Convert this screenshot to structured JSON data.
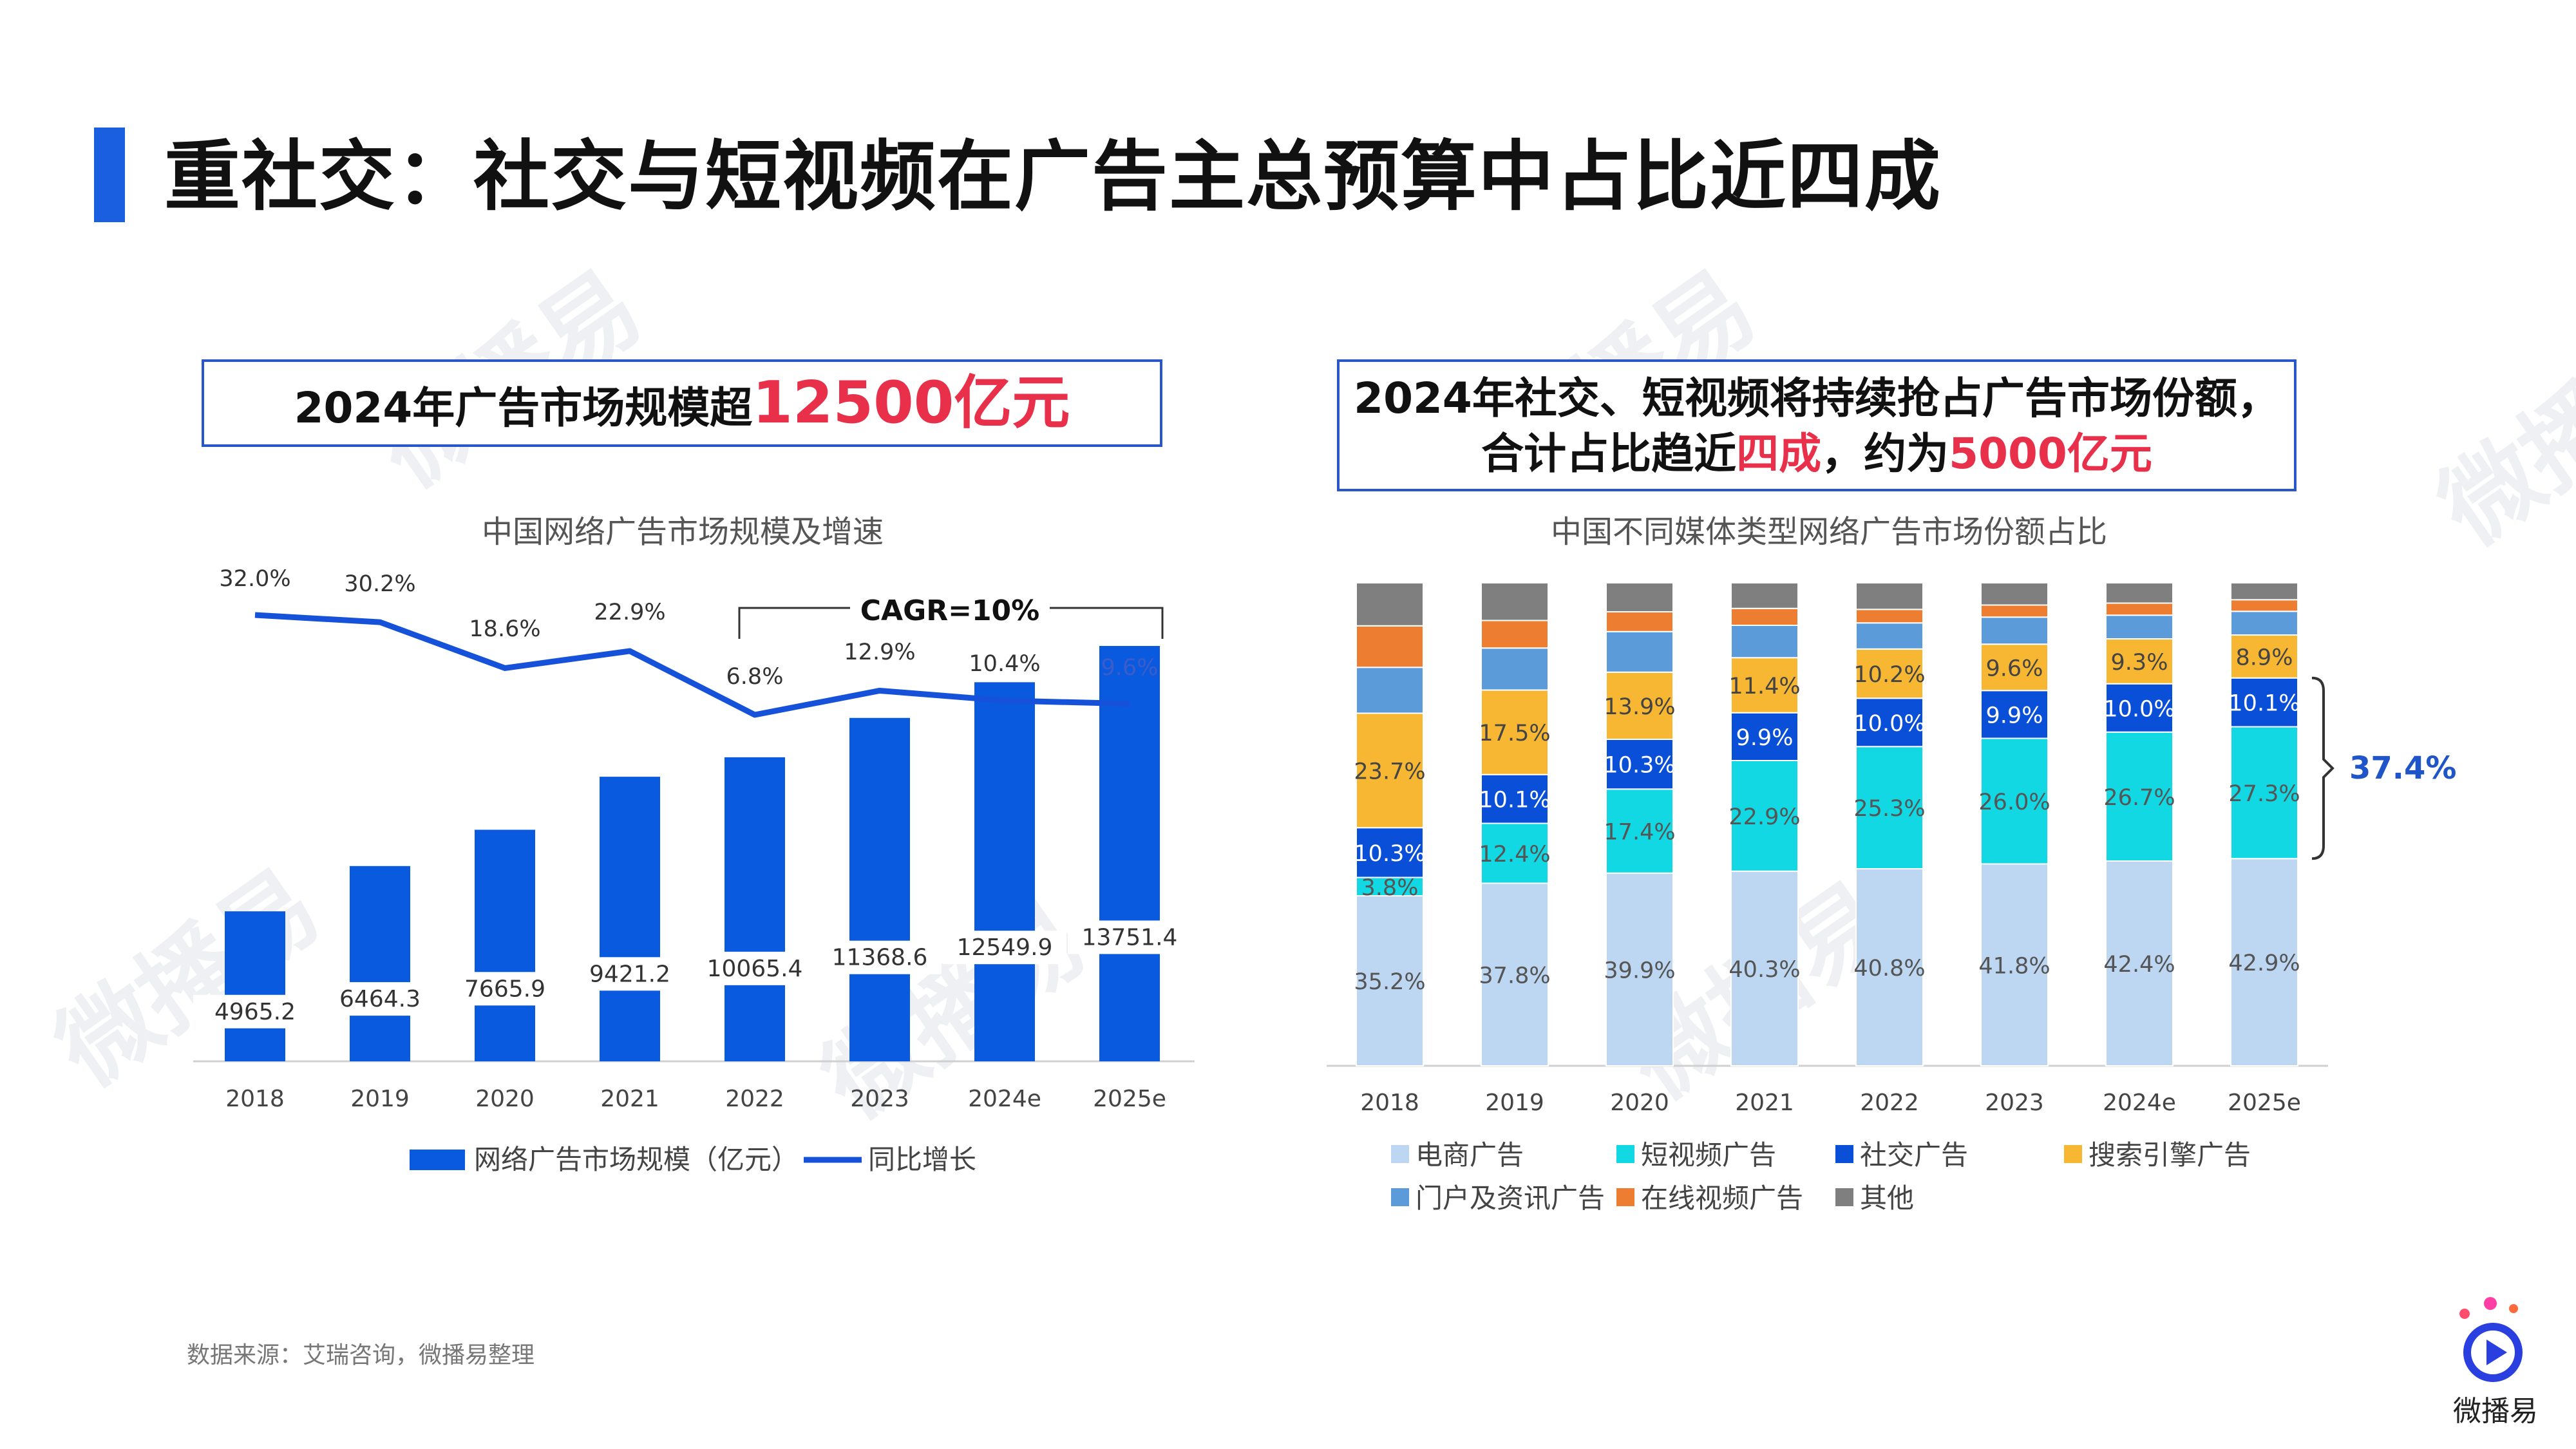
{
  "page": {
    "title": "重社交：社交与短视频在广告主总预算中占比近四成",
    "source": "数据来源：艾瑞咨询，微播易整理",
    "logo_text": "微播易",
    "watermark": "微播易"
  },
  "callouts": {
    "left": {
      "prefix": "2024年广告市场规模超",
      "highlight": "12500亿元"
    },
    "right": {
      "line1": "2024年社交、短视频将持续抢占广告市场份额，",
      "line2_prefix": "合计占比趋近",
      "line2_highlight1": "四成",
      "line2_mid": "，约为",
      "line2_highlight2": "5000亿元"
    }
  },
  "colors": {
    "accent": "#1a5fe0",
    "highlight": "#e8304a",
    "bar": "#0a5ae0",
    "line": "#1652d9",
    "ecommerce": "#bdd7f2",
    "short_video": "#12d8e4",
    "social": "#0a4fd8",
    "search": "#f7b733",
    "portal": "#5b9bd9",
    "online_video": "#ed7d31",
    "other": "#7f7f7f",
    "bracket_label": "#1f55c9"
  },
  "chart_data": [
    {
      "type": "bar",
      "title": "中国网络广告市场规模及增速",
      "categories": [
        "2018",
        "2019",
        "2020",
        "2021",
        "2022",
        "2023",
        "2024e",
        "2025e"
      ],
      "series": [
        {
          "name": "网络广告市场规模（亿元）",
          "type": "bar",
          "values": [
            4965.2,
            6464.3,
            7665.9,
            9421.2,
            10065.4,
            11368.6,
            12549.9,
            13751.4
          ],
          "labels": [
            "4965.2",
            "6464.3",
            "7665.9",
            "9421.2",
            "10065.4",
            "11368.6",
            "12549.9",
            "13751.4"
          ]
        },
        {
          "name": "同比增长",
          "type": "line",
          "values": [
            32.0,
            30.2,
            18.6,
            22.9,
            6.8,
            12.9,
            10.4,
            9.6
          ],
          "labels": [
            "32.0%",
            "30.2%",
            "18.6%",
            "22.9%",
            "6.8%",
            "12.9%",
            "10.4%",
            "9.6%"
          ]
        }
      ],
      "annotation": "CAGR=10%",
      "ylim_bar": [
        0,
        14000
      ],
      "legend": "bottom"
    },
    {
      "type": "bar",
      "stacked": true,
      "title": "中国不同媒体类型网络广告市场份额占比",
      "categories": [
        "2018",
        "2019",
        "2020",
        "2021",
        "2022",
        "2023",
        "2024e",
        "2025e"
      ],
      "series": [
        {
          "name": "电商广告",
          "values": [
            35.2,
            37.8,
            39.9,
            40.3,
            40.8,
            41.8,
            42.4,
            42.9
          ]
        },
        {
          "name": "短视频广告",
          "values": [
            3.8,
            12.4,
            17.4,
            22.9,
            25.3,
            26.0,
            26.7,
            27.3
          ]
        },
        {
          "name": "社交广告",
          "values": [
            10.3,
            10.1,
            10.3,
            9.9,
            10.0,
            9.9,
            10.0,
            10.1
          ]
        },
        {
          "name": "搜索引擎广告",
          "values": [
            23.7,
            17.5,
            13.9,
            11.4,
            10.2,
            9.6,
            9.3,
            8.9
          ]
        },
        {
          "name": "门户及资讯广告",
          "values": [
            9.5,
            8.7,
            8.4,
            6.7,
            5.4,
            5.6,
            4.9,
            4.9
          ]
        },
        {
          "name": "在线视频广告",
          "values": [
            8.6,
            5.7,
            4.1,
            3.5,
            2.8,
            2.5,
            2.5,
            2.4
          ]
        },
        {
          "name": "其他",
          "values": [
            8.9,
            7.8,
            6.0,
            5.3,
            5.5,
            4.6,
            4.2,
            3.5
          ]
        }
      ],
      "labeled_series": [
        "电商广告",
        "短视频广告",
        "社交广告",
        "搜索引擎广告"
      ],
      "labels": [
        [
          "35.2%",
          "37.8%",
          "39.9%",
          "40.3%",
          "40.8%",
          "41.8%",
          "42.4%",
          "42.9%"
        ],
        [
          "3.8%",
          "12.4%",
          "17.4%",
          "22.9%",
          "25.3%",
          "26.0%",
          "26.7%",
          "27.3%"
        ],
        [
          "10.3%",
          "10.1%",
          "10.3%",
          "9.9%",
          "10.0%",
          "9.9%",
          "10.0%",
          "10.1%"
        ],
        [
          "23.7%",
          "17.5%",
          "13.9%",
          "11.4%",
          "10.2%",
          "9.6%",
          "9.3%",
          "8.9%"
        ]
      ],
      "bracket_annotation": "37.4%",
      "ylim": [
        0,
        100
      ],
      "legend": "bottom"
    }
  ]
}
